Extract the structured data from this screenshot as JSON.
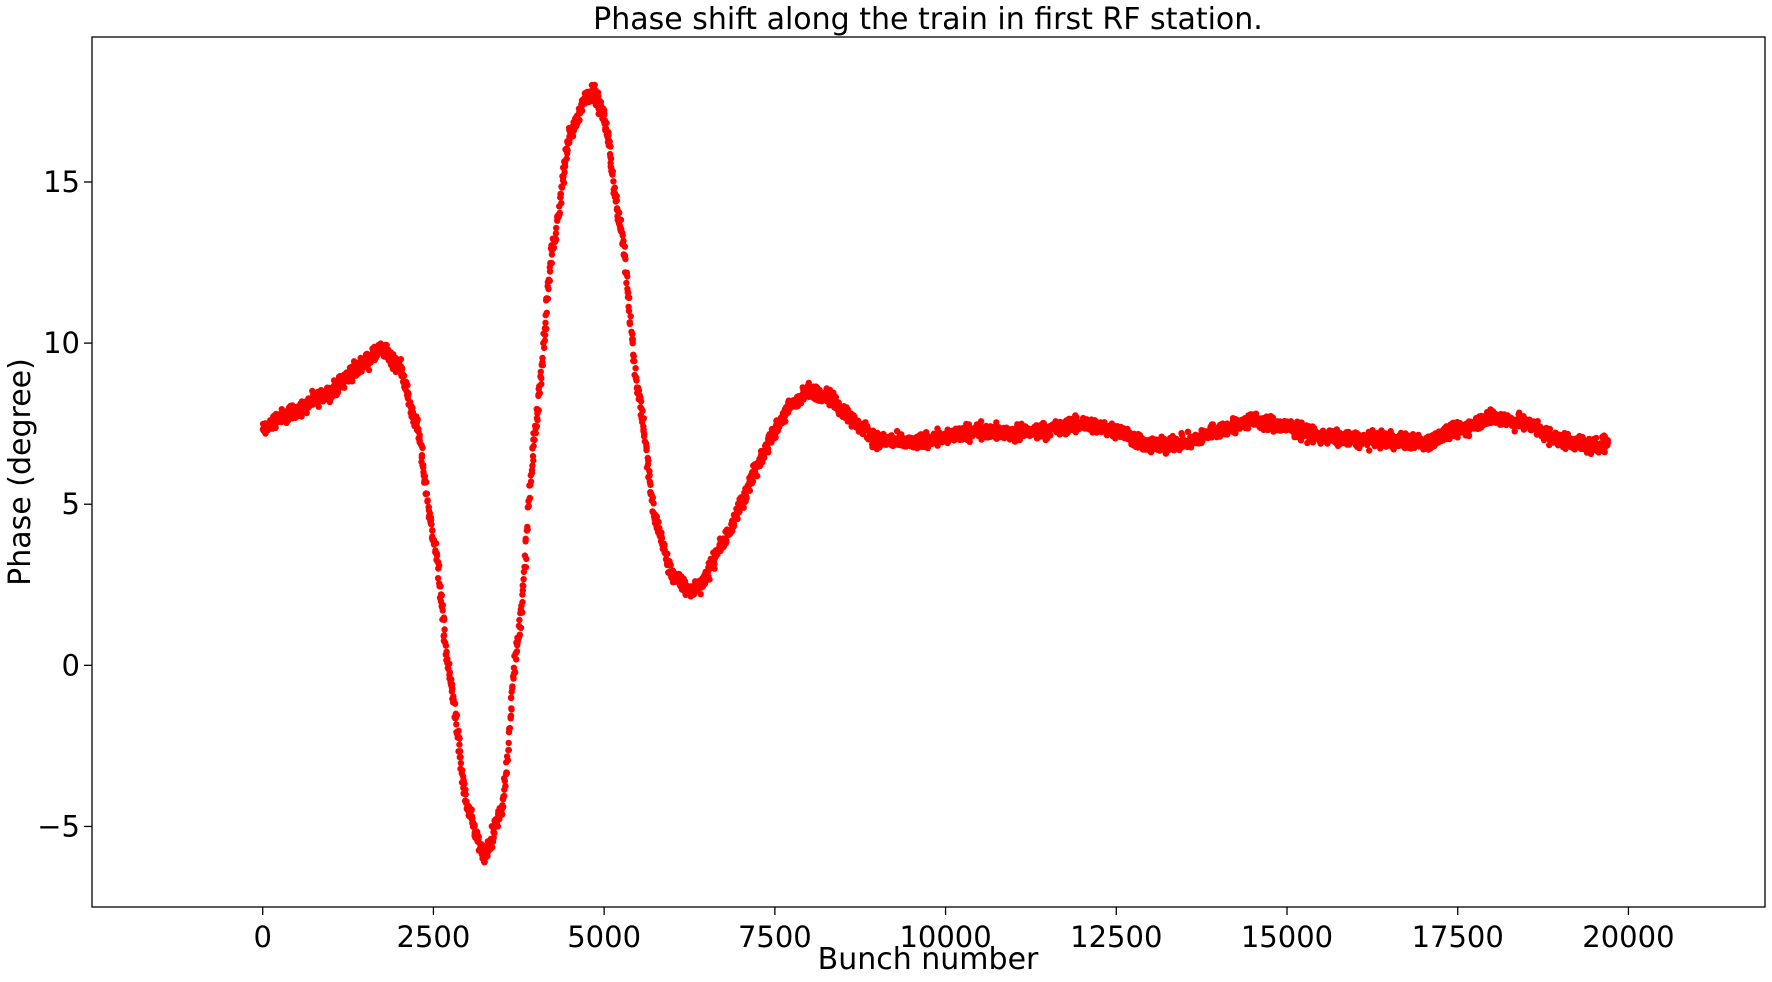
{
  "chart_data": {
    "type": "scatter",
    "title": "Phase shift along the train in first RF station.",
    "xlabel": "Bunch number",
    "ylabel": "Phase (degree)",
    "xlim": [
      -2500,
      22000
    ],
    "ylim": [
      -7.5,
      19.5
    ],
    "xticks": [
      0,
      2500,
      5000,
      7500,
      10000,
      12500,
      15000,
      17500,
      20000
    ],
    "xtick_labels": [
      "0",
      "2500",
      "5000",
      "7500",
      "10000",
      "12500",
      "15000",
      "17500",
      "20000"
    ],
    "yticks": [
      -5,
      0,
      5,
      10,
      15
    ],
    "ytick_labels": [
      "−5",
      "0",
      "5",
      "10",
      "15"
    ],
    "grid": false,
    "series": [
      {
        "marker_color": "#ff0000",
        "band_half_width": 0.35,
        "x": [
          0,
          250,
          500,
          750,
          1000,
          1250,
          1500,
          1750,
          2000,
          2250,
          2500,
          2750,
          3000,
          3250,
          3500,
          3750,
          4000,
          4250,
          4500,
          4750,
          4850,
          5000,
          5250,
          5500,
          5750,
          6000,
          6250,
          6400,
          6750,
          7000,
          7250,
          7500,
          7750,
          8000,
          8250,
          8500,
          8750,
          9000,
          9500,
          10000,
          10500,
          11000,
          11500,
          12000,
          12500,
          13000,
          13500,
          14000,
          14500,
          15000,
          15500,
          16000,
          16500,
          17000,
          17500,
          18000,
          18500,
          19000,
          19500,
          19700
        ],
        "y": [
          7.3,
          7.7,
          7.9,
          8.2,
          8.5,
          9.0,
          9.4,
          9.8,
          9.3,
          7.5,
          4.0,
          -0.5,
          -4.5,
          -6.0,
          -4.5,
          1.0,
          7.5,
          13.0,
          16.5,
          17.7,
          17.8,
          17.0,
          13.5,
          8.5,
          4.5,
          2.8,
          2.3,
          2.5,
          3.8,
          5.0,
          6.2,
          7.3,
          8.1,
          8.5,
          8.4,
          7.9,
          7.4,
          7.0,
          6.9,
          7.1,
          7.3,
          7.2,
          7.3,
          7.5,
          7.3,
          6.8,
          6.9,
          7.3,
          7.6,
          7.4,
          7.1,
          7.0,
          7.0,
          6.9,
          7.3,
          7.7,
          7.5,
          7.0,
          6.8,
          6.9
        ]
      }
    ]
  }
}
